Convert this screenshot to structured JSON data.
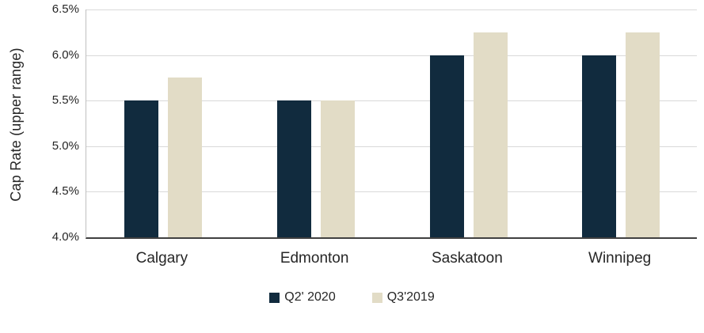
{
  "chart_data": {
    "type": "bar",
    "ylabel": "Cap Rate (upper range)",
    "categories": [
      "Calgary",
      "Edmonton",
      "Saskatoon",
      "Winnipeg"
    ],
    "series": [
      {
        "name": "Q2' 2020",
        "color": "#112B3E",
        "values": [
          5.5,
          5.5,
          6.0,
          6.0
        ]
      },
      {
        "name": "Q3'2019",
        "color": "#E2DCC6",
        "values": [
          5.75,
          5.5,
          6.25,
          6.25
        ]
      }
    ],
    "ylim": [
      4.0,
      6.5
    ],
    "y_ticks": [
      4.0,
      4.5,
      5.0,
      5.5,
      6.0,
      6.5
    ],
    "y_tick_labels": [
      "4.0%",
      "4.5%",
      "5.0%",
      "5.5%",
      "6.0%",
      "6.5%"
    ],
    "grid": "horizontal-light",
    "legend_position": "bottom-center",
    "colors": {
      "gridline": "#D9D9D9",
      "y_axis_line": "#BFBFBF",
      "x_axis_line": "#404040",
      "label_text": "#262626",
      "background": "#FFFFFF"
    }
  }
}
